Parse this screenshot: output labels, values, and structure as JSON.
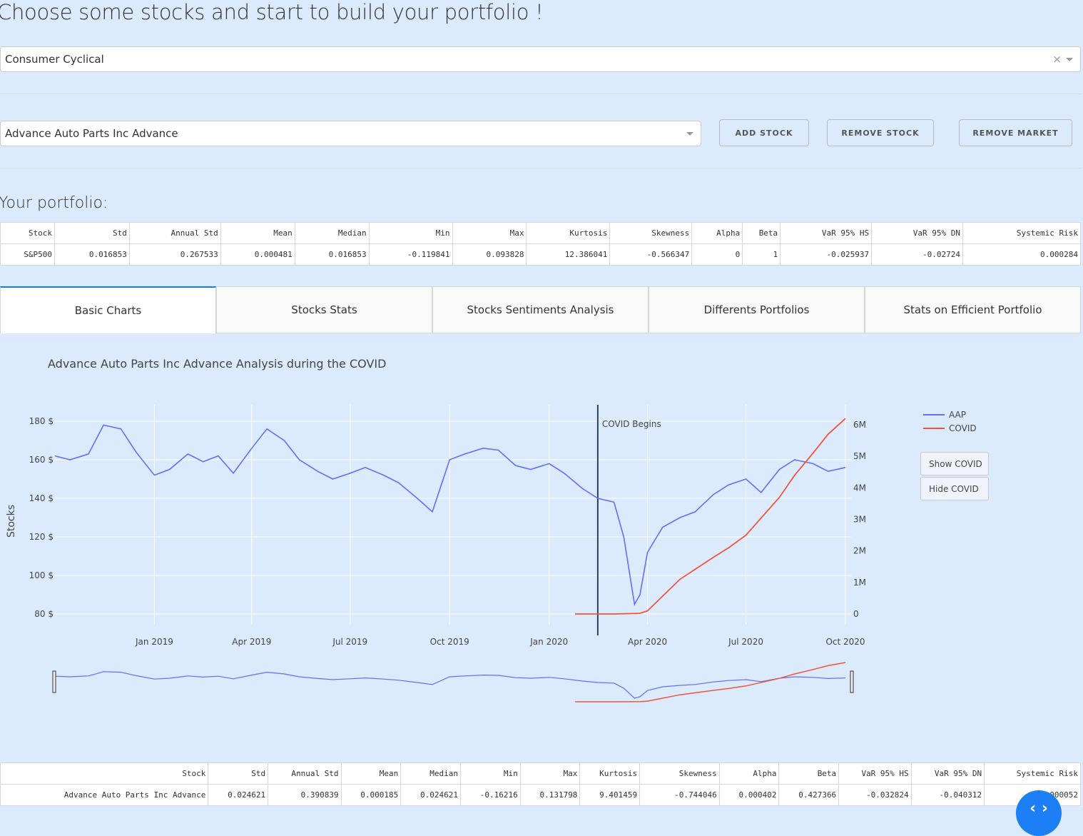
{
  "page": {
    "title": "Choose some stocks and start to build your portfolio !",
    "portfolio_heading": "Your portfolio:"
  },
  "selectors": {
    "sector": {
      "value": "Consumer Cyclical",
      "clear_symbol": "×"
    },
    "stock": {
      "value": "Advance Auto Parts Inc Advance"
    }
  },
  "buttons": {
    "add_stock": "ADD STOCK",
    "remove_stock": "REMOVE STOCK",
    "remove_market": "REMOVE MARKET"
  },
  "portfolio_table": {
    "headers": [
      "Stock",
      "Std",
      "Annual Std",
      "Mean",
      "Median",
      "Min",
      "Max",
      "Kurtosis",
      "Skewness",
      "Alpha",
      "Beta",
      "VaR 95% HS",
      "VaR 95% DN",
      "Systemic Risk"
    ],
    "rows": [
      [
        "S&P500",
        "0.016853",
        "0.267533",
        "0.000481",
        "0.016853",
        "-0.119841",
        "0.093828",
        "12.386041",
        "-0.566347",
        "0",
        "1",
        "-0.025937",
        "-0.02724",
        "0.000284"
      ]
    ]
  },
  "tabs": [
    "Basic Charts",
    "Stocks Stats",
    "Stocks Sentiments Analysis",
    "Differents Portfolios",
    "Stats on Efficient Portfolio"
  ],
  "chart": {
    "title": "Advance Auto Parts Inc Advance  Analysis during the COVID",
    "show_covid": "Show COVID",
    "hide_covid": "Hide COVID"
  },
  "chart_data": {
    "type": "line",
    "title": "Advance Auto Parts Inc Advance  Analysis during the COVID",
    "ylabel": "Stocks",
    "y_tick_labels": [
      "80 $",
      "100 $",
      "120 $",
      "140 $",
      "160 $",
      "180 $"
    ],
    "y2_tick_labels": [
      "0",
      "1M",
      "2M",
      "3M",
      "4M",
      "5M",
      "6M"
    ],
    "x_tick_labels": [
      "Jan 2019",
      "Apr 2019",
      "Jul 2019",
      "Oct 2019",
      "Jan 2020",
      "Apr 2020",
      "Jul 2020",
      "Oct 2020"
    ],
    "ylim": [
      75,
      185
    ],
    "y2lim": [
      0,
      6300000
    ],
    "annotation": {
      "label": "COVID Begins",
      "date": "2020-02-15"
    },
    "legend_position": "top-right",
    "series": [
      {
        "name": "AAP",
        "color": "#636efa",
        "x": [
          "2018-10-01",
          "2018-10-15",
          "2018-11-01",
          "2018-11-15",
          "2018-12-01",
          "2018-12-15",
          "2019-01-01",
          "2019-01-15",
          "2019-02-01",
          "2019-02-15",
          "2019-03-01",
          "2019-03-15",
          "2019-04-01",
          "2019-04-15",
          "2019-05-01",
          "2019-05-15",
          "2019-06-01",
          "2019-06-15",
          "2019-07-01",
          "2019-07-15",
          "2019-08-01",
          "2019-08-15",
          "2019-09-01",
          "2019-09-15",
          "2019-10-01",
          "2019-10-15",
          "2019-11-01",
          "2019-11-15",
          "2019-12-01",
          "2019-12-15",
          "2020-01-01",
          "2020-01-15",
          "2020-02-01",
          "2020-02-15",
          "2020-03-01",
          "2020-03-10",
          "2020-03-20",
          "2020-03-25",
          "2020-04-01",
          "2020-04-15",
          "2020-05-01",
          "2020-05-15",
          "2020-06-01",
          "2020-06-15",
          "2020-07-01",
          "2020-07-15",
          "2020-08-01",
          "2020-08-15",
          "2020-09-01",
          "2020-09-15",
          "2020-10-01"
        ],
        "y": [
          162,
          160,
          163,
          178,
          176,
          164,
          152,
          155,
          163,
          159,
          162,
          153,
          166,
          176,
          170,
          160,
          154,
          150,
          153,
          156,
          152,
          148,
          140,
          133,
          160,
          163,
          166,
          165,
          157,
          155,
          158,
          153,
          145,
          140,
          138,
          120,
          85,
          90,
          112,
          125,
          130,
          133,
          142,
          147,
          150,
          143,
          155,
          160,
          158,
          154,
          156
        ]
      },
      {
        "name": "COVID",
        "color": "#ef553b",
        "x": [
          "2020-01-25",
          "2020-02-15",
          "2020-03-01",
          "2020-03-25",
          "2020-04-01",
          "2020-05-01",
          "2020-06-01",
          "2020-06-15",
          "2020-07-01",
          "2020-08-01",
          "2020-08-15",
          "2020-09-01",
          "2020-09-15",
          "2020-10-01"
        ],
        "y": [
          0,
          0,
          0,
          20000,
          100000,
          1100000,
          1800000,
          2100000,
          2500000,
          3700000,
          4400000,
          5100000,
          5700000,
          6200000
        ]
      }
    ]
  },
  "stock_table": {
    "headers": [
      "Stock",
      "Std",
      "Annual Std",
      "Mean",
      "Median",
      "Min",
      "Max",
      "Kurtosis",
      "Skewness",
      "Alpha",
      "Beta",
      "VaR 95% HS",
      "VaR 95% DN",
      "Systemic Risk"
    ],
    "rows": [
      [
        "Advance Auto Parts Inc Advance",
        "0.024621",
        "0.390839",
        "0.000185",
        "0.024621",
        "-0.16216",
        "0.131798",
        "9.401459",
        "-0.744046",
        "0.000402",
        "0.427366",
        "-0.032824",
        "-0.040312",
        "0.000052"
      ]
    ]
  },
  "fab": {
    "symbol": "‹ ›"
  }
}
